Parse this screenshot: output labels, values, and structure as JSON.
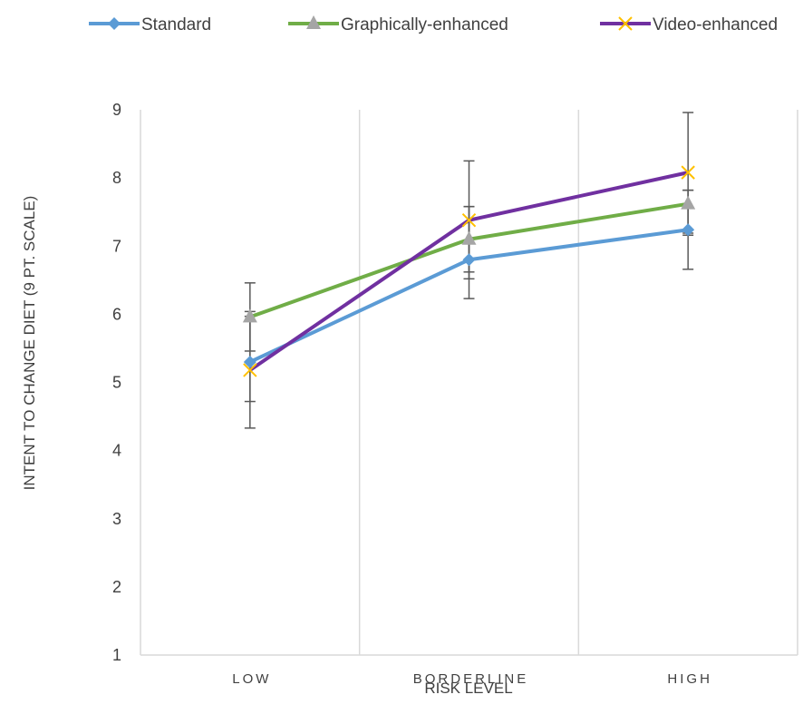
{
  "chart_data": {
    "type": "line",
    "categories": [
      "LOW",
      "BORDERLINE",
      "HIGH"
    ],
    "series": [
      {
        "name": "Standard",
        "values": [
          5.3,
          6.8,
          7.24
        ],
        "color": "#5b9bd5",
        "marker": "diamond",
        "error_high": [
          5.97,
          7.58,
          7.82
        ],
        "error_low": [
          4.72,
          6.23,
          6.66
        ]
      },
      {
        "name": "Graphically-enhanced",
        "values": [
          5.96,
          7.1,
          7.62
        ],
        "color": "#70ad47",
        "marker": "triangle",
        "error_high": [
          6.46,
          7.58,
          7.82
        ],
        "error_low": [
          5.46,
          6.62,
          7.16
        ]
      },
      {
        "name": "Video-enhanced",
        "values": [
          5.18,
          7.38,
          8.08
        ],
        "color": "#7030a0",
        "marker": "x",
        "marker_color": "#ffc000",
        "error_high": [
          6.04,
          8.25,
          8.96
        ],
        "error_low": [
          4.33,
          6.52,
          7.19
        ]
      }
    ],
    "ylim": [
      1,
      9
    ],
    "yticks": [
      "1",
      "2",
      "3",
      "4",
      "5",
      "6",
      "7",
      "8",
      "9"
    ],
    "xlabel": "RISK LEVEL",
    "ylabel": "INTENT TO CHANGE DIET (9 PT. SCALE)",
    "legend_position": "top",
    "grid": "vertical"
  }
}
